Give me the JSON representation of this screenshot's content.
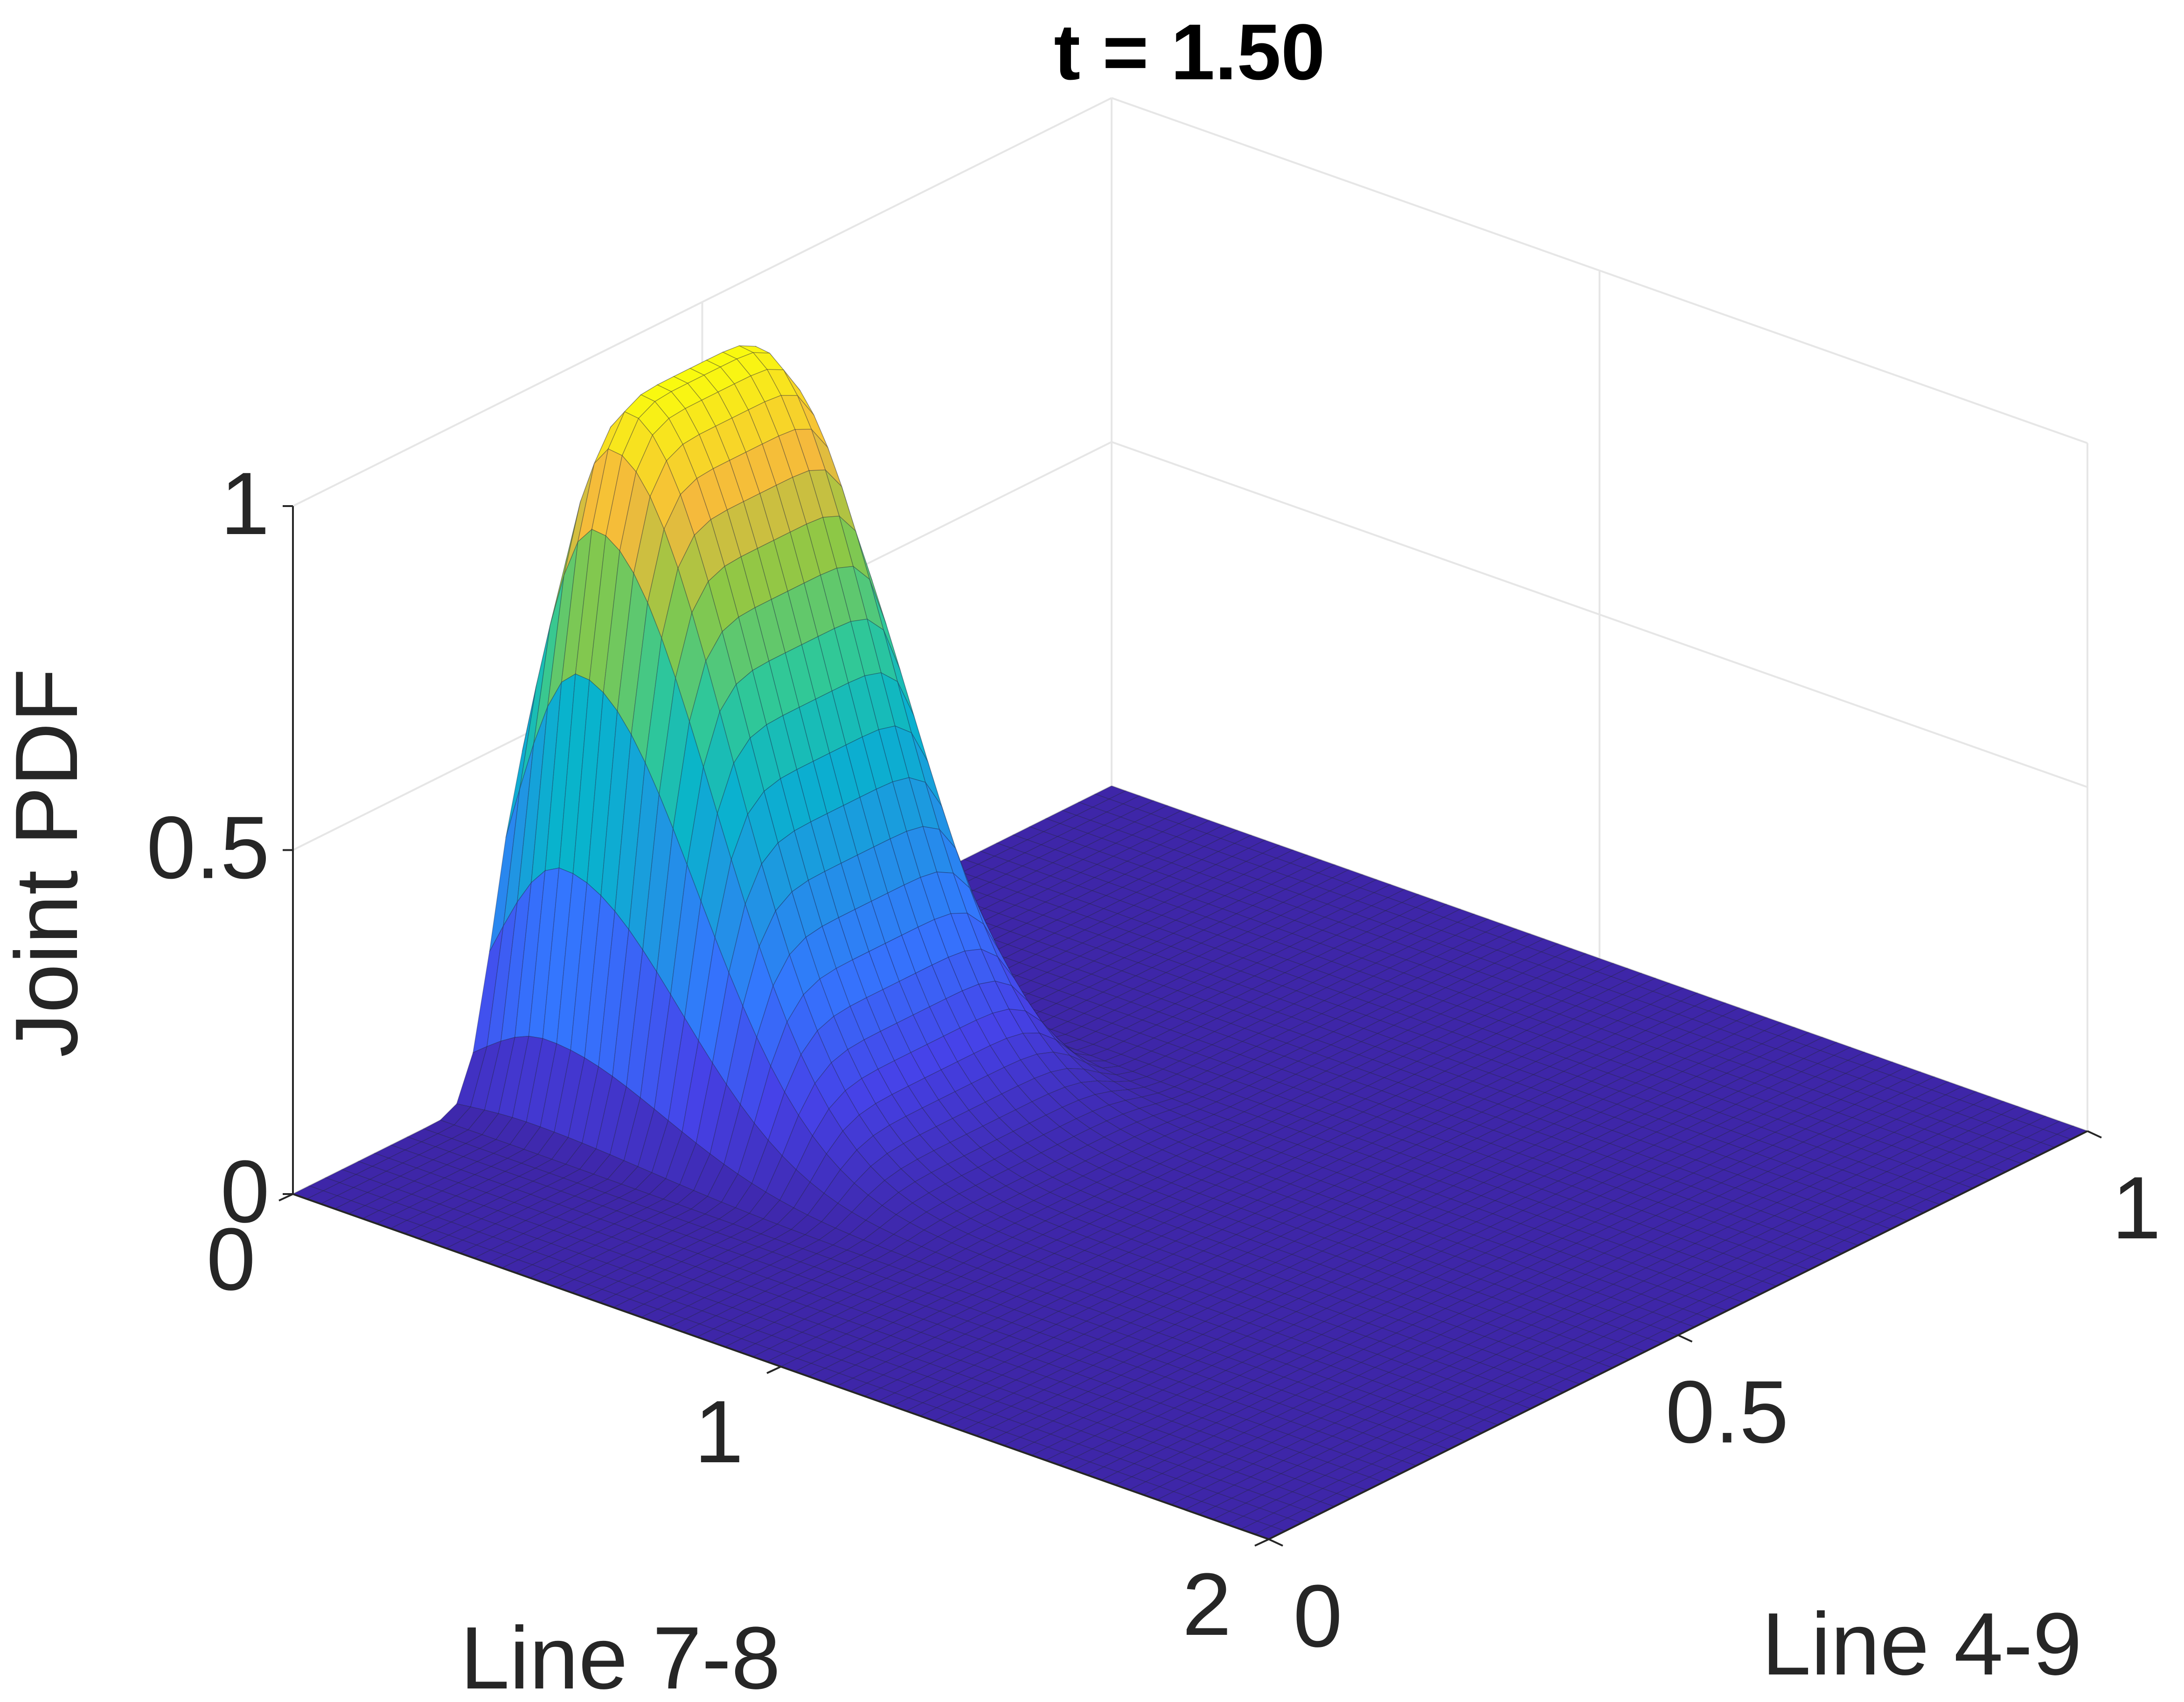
{
  "chart_data": {
    "type": "surface",
    "title": "t = 1.50",
    "xlabel": "Line 7-8",
    "ylabel": "Line 4-9",
    "zlabel": "Joint PDF",
    "xlim": [
      0,
      2
    ],
    "ylim": [
      0,
      1
    ],
    "zlim": [
      0,
      1
    ],
    "x_ticks": [
      "0",
      "1",
      "2"
    ],
    "y_ticks": [
      "0",
      "0.5",
      "1"
    ],
    "z_ticks": [
      "0",
      "0.5",
      "1"
    ],
    "x_tick_values": [
      0,
      1,
      2
    ],
    "y_tick_values": [
      0,
      0.5,
      1
    ],
    "z_tick_values": [
      0,
      0.5,
      1
    ],
    "grid": true,
    "colormap": "parula",
    "peak": {
      "x": 0.15,
      "y": 0.4,
      "z": 1.0
    },
    "surface_model": "ridge along Line 4-9 near its center, peaking near Line 7-8 ≈ 0.15 and decaying to ~0 for Line 7-8 > 1",
    "samples": [
      {
        "x": 0.0,
        "y": 0.4,
        "z": 0.93
      },
      {
        "x": 0.15,
        "y": 0.4,
        "z": 1.0
      },
      {
        "x": 0.5,
        "y": 0.4,
        "z": 0.48
      },
      {
        "x": 1.0,
        "y": 0.4,
        "z": 0.03
      },
      {
        "x": 2.0,
        "y": 0.4,
        "z": 0.0
      },
      {
        "x": 0.15,
        "y": 0.0,
        "z": 0.0
      },
      {
        "x": 0.15,
        "y": 1.0,
        "z": 0.0
      }
    ]
  },
  "colors": {
    "background": "#ffffff",
    "axis": "#262626",
    "grid": "#e6e6e6",
    "colormap_low": "#3e26a8",
    "colormap_high": "#f9fb0e"
  }
}
